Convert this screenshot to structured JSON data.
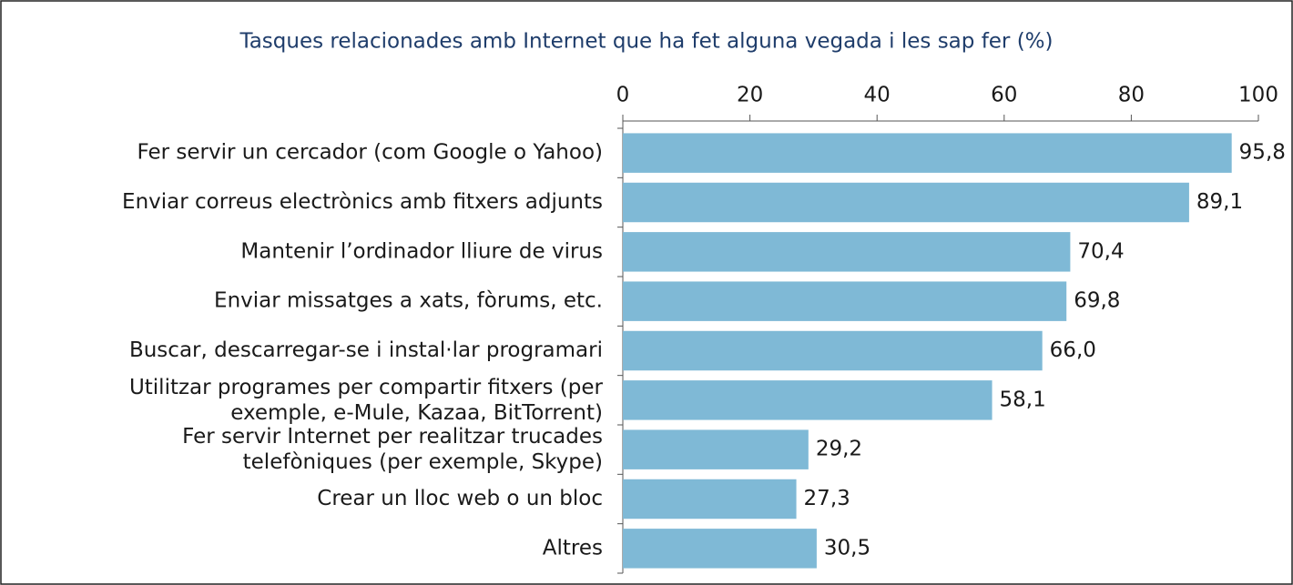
{
  "chart_data": {
    "type": "bar",
    "orientation": "horizontal",
    "title": "Tasques relacionades amb Internet que ha fet alguna vegada i les sap fer (%)",
    "categories": [
      "Fer servir un cercador (com Google o Yahoo)",
      "Enviar correus electrònics amb fitxers adjunts",
      "Mantenir l’ordinador lliure de virus",
      "Enviar missatges a xats, fòrums, etc.",
      "Buscar, descarregar-se i instal·lar programari",
      "Utilitzar programes per compartir fitxers (per\nexemple, e-Mule, Kazaa, BitTorrent)",
      "Fer servir Internet per realitzar trucades\ntelefòniques (per exemple, Skype)",
      "Crear un lloc web o un bloc",
      "Altres"
    ],
    "values": [
      95.8,
      89.1,
      70.4,
      69.8,
      66.0,
      58.1,
      29.2,
      27.3,
      30.5
    ],
    "value_labels": [
      "95,8",
      "89,1",
      "70,4",
      "69,8",
      "66,0",
      "58,1",
      "29,2",
      "27,3",
      "30,5"
    ],
    "color": "#7fb9d6",
    "xlim": [
      0,
      100
    ],
    "xticks": [
      0,
      20,
      40,
      60,
      80,
      100
    ]
  }
}
